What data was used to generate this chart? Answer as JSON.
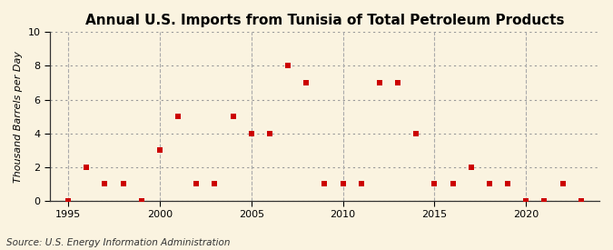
{
  "title": "Annual U.S. Imports from Tunisia of Total Petroleum Products",
  "ylabel": "Thousand Barrels per Day",
  "source": "Source: U.S. Energy Information Administration",
  "bg_color": "#faf3e0",
  "plot_bg_color": "#faf3e0",
  "years": [
    1995,
    1996,
    1997,
    1998,
    1999,
    2000,
    2001,
    2002,
    2003,
    2004,
    2005,
    2006,
    2007,
    2008,
    2009,
    2010,
    2011,
    2012,
    2013,
    2014,
    2015,
    2016,
    2017,
    2018,
    2019,
    2020,
    2021,
    2022,
    2023
  ],
  "values": [
    0,
    2,
    1,
    1,
    0,
    3,
    5,
    1,
    1,
    5,
    4,
    4,
    8,
    7,
    1,
    1,
    1,
    7,
    7,
    4,
    1,
    1,
    2,
    1,
    1,
    0,
    0,
    1,
    0
  ],
  "marker_color": "#cc0000",
  "marker": "s",
  "marker_size": 4,
  "xlim": [
    1994,
    2024
  ],
  "ylim": [
    0,
    10
  ],
  "yticks": [
    0,
    2,
    4,
    6,
    8,
    10
  ],
  "xticks": [
    1995,
    2000,
    2005,
    2010,
    2015,
    2020
  ],
  "hgrid_color": "#999999",
  "vline_color": "#aaaaaa",
  "title_fontsize": 11,
  "label_fontsize": 8,
  "tick_fontsize": 8,
  "source_fontsize": 7.5
}
